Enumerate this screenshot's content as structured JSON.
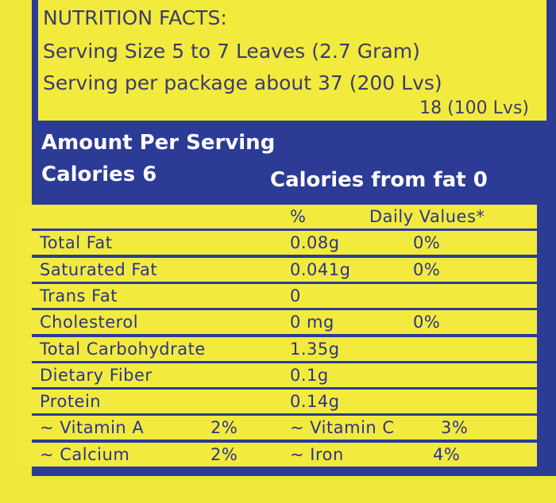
{
  "header": {
    "title": "NUTRITION FACTS:",
    "serving_size": "Serving Size 5 to 7 Leaves (2.7 Gram)",
    "servings_line1": "Serving per package about 37 (200 Lvs)",
    "servings_line2": "18 (100 Lvs)"
  },
  "amount": {
    "heading": "Amount Per Serving",
    "calories": "Calories 6",
    "calories_from_fat": "Calories from fat 0"
  },
  "table": {
    "header": [
      "%",
      "Daily Values*"
    ],
    "rows": [
      [
        "Total Fat",
        "0.08g",
        "0%"
      ],
      [
        "Saturated Fat",
        "0.041g",
        "0%"
      ],
      [
        "Trans Fat",
        "0"
      ],
      [
        "Cholesterol",
        "0 mg",
        "0%"
      ],
      [
        "Total Carbohydrate",
        "1.35g"
      ],
      [
        "Dietary Fiber",
        "0.1g"
      ],
      [
        "Protein",
        "0.14g"
      ]
    ],
    "vitamins": [
      [
        "~ Vitamin A",
        "2%",
        "~ Vitamin C",
        "3%"
      ],
      [
        "~ Calcium",
        "2%",
        "~ Iron",
        "4%"
      ]
    ]
  }
}
